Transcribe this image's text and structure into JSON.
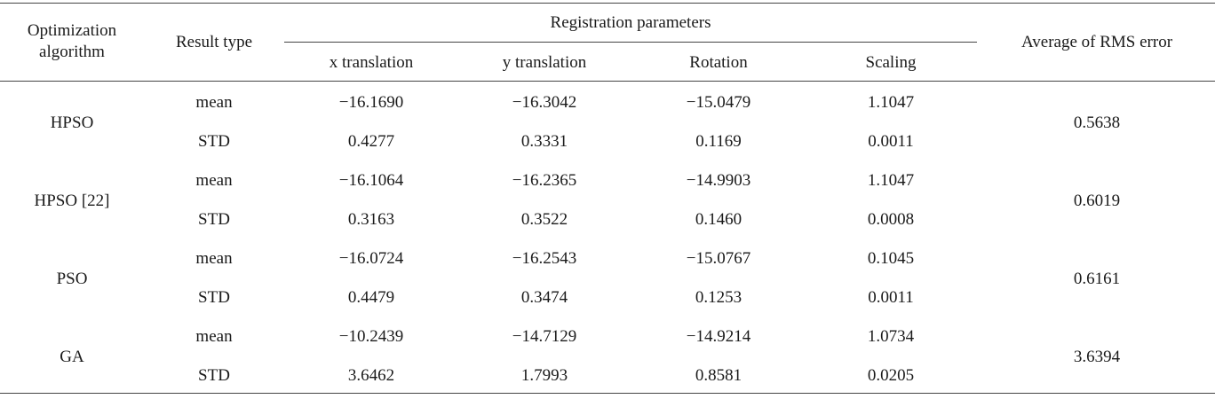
{
  "table": {
    "headers": {
      "algorithm_line1": "Optimization",
      "algorithm_line2": "algorithm",
      "result_type": "Result type",
      "registration_parameters": "Registration parameters",
      "x_translation": "x translation",
      "y_translation": "y translation",
      "rotation": "Rotation",
      "scaling": "Scaling",
      "avg_rms": "Average of RMS error"
    },
    "groups": [
      {
        "algorithm": "HPSO",
        "rms": "0.5638",
        "rows": [
          {
            "type": "mean",
            "x": "−16.1690",
            "y": "−16.3042",
            "rot": "−15.0479",
            "scale": "1.1047"
          },
          {
            "type": "STD",
            "x": "0.4277",
            "y": "0.3331",
            "rot": "0.1169",
            "scale": "0.0011"
          }
        ]
      },
      {
        "algorithm": "HPSO [22]",
        "rms": "0.6019",
        "rows": [
          {
            "type": "mean",
            "x": "−16.1064",
            "y": "−16.2365",
            "rot": "−14.9903",
            "scale": "1.1047"
          },
          {
            "type": "STD",
            "x": "0.3163",
            "y": "0.3522",
            "rot": "0.1460",
            "scale": "0.0008"
          }
        ]
      },
      {
        "algorithm": "PSO",
        "rms": "0.6161",
        "rows": [
          {
            "type": "mean",
            "x": "−16.0724",
            "y": "−16.2543",
            "rot": "−15.0767",
            "scale": "0.1045"
          },
          {
            "type": "STD",
            "x": "0.4479",
            "y": "0.3474",
            "rot": "0.1253",
            "scale": "0.0011"
          }
        ]
      },
      {
        "algorithm": "GA",
        "rms": "3.6394",
        "rows": [
          {
            "type": "mean",
            "x": "−10.2439",
            "y": "−14.7129",
            "rot": "−14.9214",
            "scale": "1.0734"
          },
          {
            "type": "STD",
            "x": "3.6462",
            "y": "1.7993",
            "rot": "0.8581",
            "scale": "0.0205"
          }
        ]
      }
    ]
  }
}
